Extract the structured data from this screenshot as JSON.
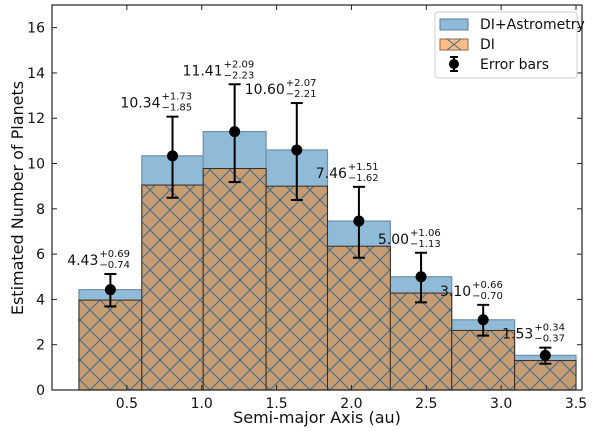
{
  "chart_data": {
    "type": "bar",
    "xlabel": "Semi-major Axis (au)",
    "ylabel": "Estimated Number of Planets",
    "xlim": [
      0.0,
      3.54
    ],
    "ylim": [
      0,
      17
    ],
    "xticks": [
      "0.5",
      "1.0",
      "1.5",
      "2.0",
      "2.5",
      "3.0",
      "3.5"
    ],
    "yticks": [
      "0",
      "2",
      "4",
      "6",
      "8",
      "10",
      "12",
      "14",
      "16"
    ],
    "grid": false,
    "legend_position": "top-right",
    "bin_edges": [
      0.18,
      0.6,
      1.01,
      1.43,
      1.84,
      2.26,
      2.67,
      3.09,
      3.5
    ],
    "series": [
      {
        "name": "DI+Astrometry",
        "color": "#8fbbd9",
        "values": [
          4.43,
          10.34,
          11.41,
          10.6,
          7.46,
          5.0,
          3.1,
          1.53
        ]
      },
      {
        "name": "DI",
        "color": "#c69c73",
        "hatch": "x",
        "values": [
          3.97,
          9.05,
          9.78,
          9.0,
          6.35,
          4.28,
          2.63,
          1.3
        ]
      }
    ],
    "errorbars": {
      "name": "Error bars",
      "values": [
        4.43,
        10.34,
        11.41,
        10.6,
        7.46,
        5.0,
        3.1,
        1.53
      ],
      "plus": [
        0.69,
        1.73,
        2.09,
        2.07,
        1.51,
        1.06,
        0.66,
        0.34
      ],
      "minus": [
        0.74,
        1.85,
        2.23,
        2.21,
        1.62,
        1.13,
        0.7,
        0.37
      ]
    },
    "annotations": [
      {
        "value": "4.43",
        "plus": "+0.69",
        "minus": "−0.74"
      },
      {
        "value": "10.34",
        "plus": "+1.73",
        "minus": "−1.85"
      },
      {
        "value": "11.41",
        "plus": "+2.09",
        "minus": "−2.23"
      },
      {
        "value": "10.60",
        "plus": "+2.07",
        "minus": "−2.21"
      },
      {
        "value": "7.46",
        "plus": "+1.51",
        "minus": "−1.62"
      },
      {
        "value": "5.00",
        "plus": "+1.06",
        "minus": "−1.13"
      },
      {
        "value": "3.10",
        "plus": "+0.66",
        "minus": "−0.70"
      },
      {
        "value": "1.53",
        "plus": "+0.34",
        "minus": "−0.37"
      }
    ]
  }
}
